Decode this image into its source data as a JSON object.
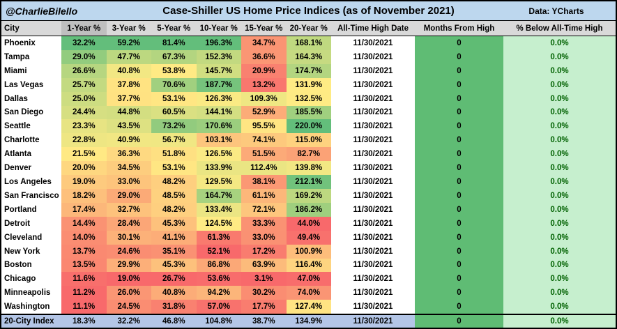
{
  "titlebar": {
    "handle": "@CharlieBilello",
    "title": "Case-Shiller US Home Price Indices (as of November 2021)",
    "source": "Data: YCharts"
  },
  "chart_data": {
    "type": "table",
    "columns": [
      "City",
      "1-Year %",
      "3-Year %",
      "5-Year %",
      "10-Year %",
      "15-Year %",
      "20-Year %",
      "All-Time High Date",
      "Months From High",
      "% Below All-Time High"
    ],
    "rows": [
      {
        "city": "Phoenix",
        "values": [
          32.2,
          59.2,
          81.4,
          196.3,
          34.7,
          168.1
        ],
        "high_date": "11/30/2021",
        "months_from_high": "0",
        "pct_below_high": "0.0%"
      },
      {
        "city": "Tampa",
        "values": [
          29.0,
          47.7,
          67.3,
          152.3,
          36.6,
          164.3
        ],
        "high_date": "11/30/2021",
        "months_from_high": "0",
        "pct_below_high": "0.0%"
      },
      {
        "city": "Miami",
        "values": [
          26.6,
          40.8,
          53.8,
          145.7,
          20.9,
          174.7
        ],
        "high_date": "11/30/2021",
        "months_from_high": "0",
        "pct_below_high": "0.0%"
      },
      {
        "city": "Las Vegas",
        "values": [
          25.7,
          37.8,
          70.6,
          187.7,
          13.2,
          131.9
        ],
        "high_date": "11/30/2021",
        "months_from_high": "0",
        "pct_below_high": "0.0%"
      },
      {
        "city": "Dallas",
        "values": [
          25.0,
          37.7,
          53.1,
          126.3,
          109.3,
          132.5
        ],
        "high_date": "11/30/2021",
        "months_from_high": "0",
        "pct_below_high": "0.0%"
      },
      {
        "city": "San Diego",
        "values": [
          24.4,
          44.8,
          60.5,
          144.1,
          52.9,
          185.5
        ],
        "high_date": "11/30/2021",
        "months_from_high": "0",
        "pct_below_high": "0.0%"
      },
      {
        "city": "Seattle",
        "values": [
          23.3,
          43.5,
          73.2,
          170.6,
          95.5,
          220.0
        ],
        "high_date": "11/30/2021",
        "months_from_high": "0",
        "pct_below_high": "0.0%"
      },
      {
        "city": "Charlotte",
        "values": [
          22.8,
          40.9,
          56.7,
          103.1,
          74.1,
          115.0
        ],
        "high_date": "11/30/2021",
        "months_from_high": "0",
        "pct_below_high": "0.0%"
      },
      {
        "city": "Atlanta",
        "values": [
          21.5,
          36.3,
          51.8,
          126.5,
          51.5,
          82.7
        ],
        "high_date": "11/30/2021",
        "months_from_high": "0",
        "pct_below_high": "0.0%"
      },
      {
        "city": "Denver",
        "values": [
          20.0,
          34.5,
          53.1,
          133.9,
          112.4,
          139.8
        ],
        "high_date": "11/30/2021",
        "months_from_high": "0",
        "pct_below_high": "0.0%"
      },
      {
        "city": "Los Angeles",
        "values": [
          19.0,
          33.0,
          48.2,
          129.5,
          38.1,
          212.1
        ],
        "high_date": "11/30/2021",
        "months_from_high": "0",
        "pct_below_high": "0.0%"
      },
      {
        "city": "San Francisco",
        "values": [
          18.2,
          29.0,
          48.5,
          164.7,
          61.1,
          169.2
        ],
        "high_date": "11/30/2021",
        "months_from_high": "0",
        "pct_below_high": "0.0%"
      },
      {
        "city": "Portland",
        "values": [
          17.4,
          32.7,
          48.2,
          133.4,
          72.1,
          186.2
        ],
        "high_date": "11/30/2021",
        "months_from_high": "0",
        "pct_below_high": "0.0%"
      },
      {
        "city": "Detroit",
        "values": [
          14.4,
          28.4,
          45.3,
          124.5,
          33.3,
          44.0
        ],
        "high_date": "11/30/2021",
        "months_from_high": "0",
        "pct_below_high": "0.0%"
      },
      {
        "city": "Cleveland",
        "values": [
          14.0,
          30.1,
          41.1,
          61.3,
          33.0,
          49.4
        ],
        "high_date": "11/30/2021",
        "months_from_high": "0",
        "pct_below_high": "0.0%"
      },
      {
        "city": "New York",
        "values": [
          13.7,
          24.6,
          35.1,
          52.1,
          17.2,
          100.9
        ],
        "high_date": "11/30/2021",
        "months_from_high": "0",
        "pct_below_high": "0.0%"
      },
      {
        "city": "Boston",
        "values": [
          13.5,
          29.9,
          45.3,
          86.8,
          63.9,
          116.4
        ],
        "high_date": "11/30/2021",
        "months_from_high": "0",
        "pct_below_high": "0.0%"
      },
      {
        "city": "Chicago",
        "values": [
          11.6,
          19.0,
          26.7,
          53.6,
          3.1,
          47.0
        ],
        "high_date": "11/30/2021",
        "months_from_high": "0",
        "pct_below_high": "0.0%"
      },
      {
        "city": "Minneapolis",
        "values": [
          11.2,
          26.0,
          40.8,
          94.2,
          30.2,
          74.0
        ],
        "high_date": "11/30/2021",
        "months_from_high": "0",
        "pct_below_high": "0.0%"
      },
      {
        "city": "Washington",
        "values": [
          11.1,
          24.5,
          31.8,
          57.0,
          17.7,
          127.4
        ],
        "high_date": "11/30/2021",
        "months_from_high": "0",
        "pct_below_high": "0.0%"
      }
    ],
    "footer": {
      "city": "20-City Index",
      "values": [
        18.3,
        32.2,
        46.8,
        104.8,
        38.7,
        134.9
      ],
      "high_date": "11/30/2021",
      "months_from_high": "0",
      "pct_below_high": "0.0%"
    },
    "layout_hints": {
      "heatmap": "per-column 3-color scale, min=red mid=yellow max=green",
      "color_domain_overrides": {
        "4": [
          3.1,
          99.7,
          196.3
        ]
      }
    },
    "colors": {
      "scale_red": "#F8696B",
      "scale_yellow": "#FFEB84",
      "scale_green": "#63BE7B",
      "titlebar_bg": "#BDD7EE",
      "header_bg": "#D9D9D9",
      "header_selected_bg": "#BFBFBF",
      "footer_bg": "#B4C6E7",
      "months_col_bg": "#5FBC74",
      "below_col_bg": "#C6EFCE",
      "below_col_text": "#006100"
    }
  }
}
